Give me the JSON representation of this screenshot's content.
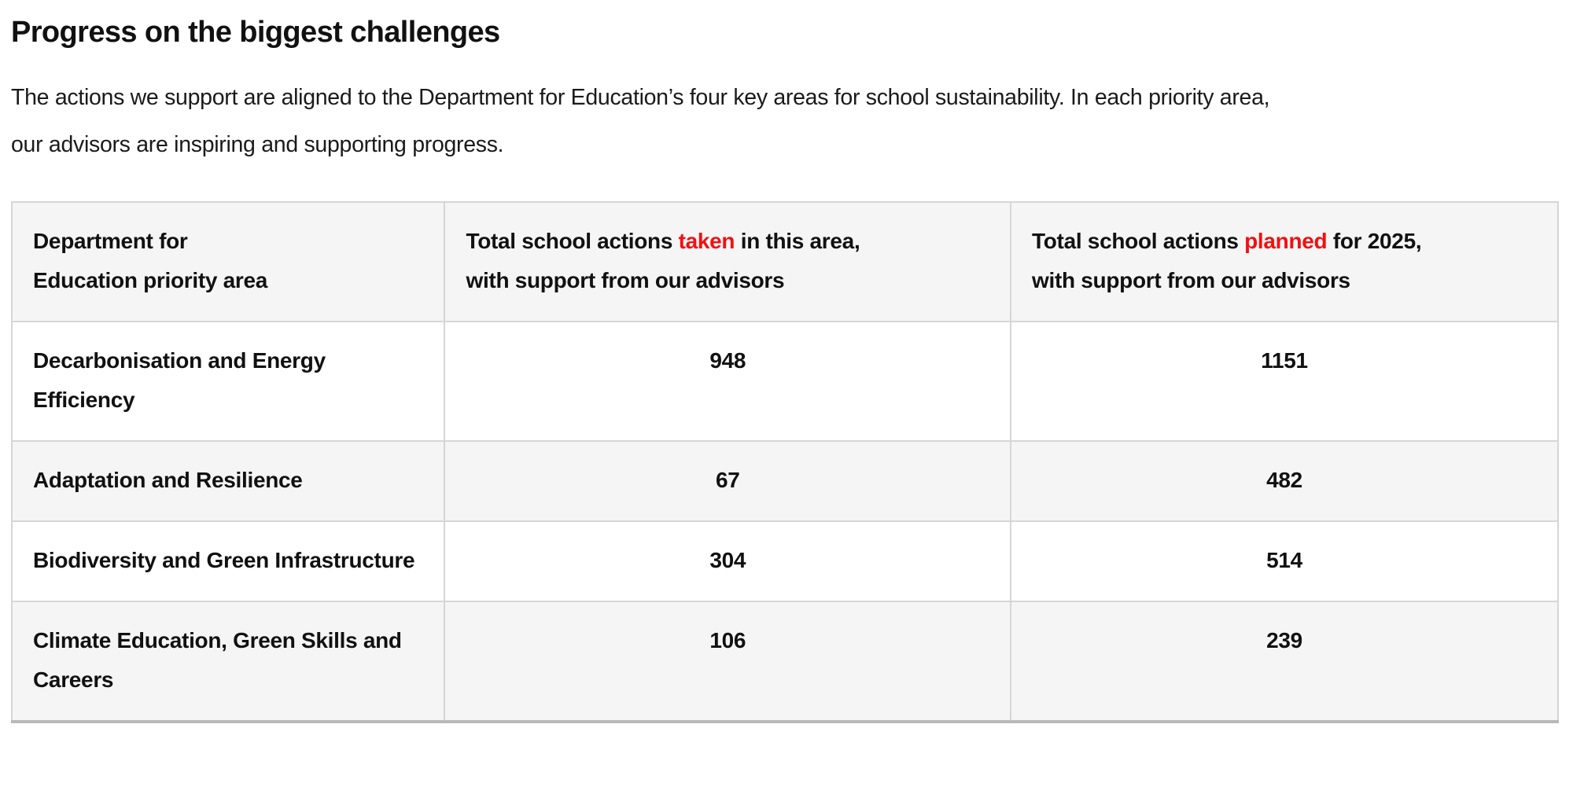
{
  "heading": "Progress on the biggest challenges",
  "intro": "The actions we support are aligned to the Department for Education’s four key areas for school sustainability. In each priority area, our advisors are inspiring and supporting progress.",
  "colors": {
    "highlight_red": "#f40f0f",
    "row_alt_bg": "#f5f5f5",
    "table_border": "#d6d6d6",
    "text": "#111111"
  },
  "table": {
    "headers": [
      {
        "name": "priority-area",
        "segments": [
          {
            "text": "Department for",
            "br": true
          },
          {
            "text": "Education priority area"
          }
        ]
      },
      {
        "name": "actions-taken",
        "segments": [
          {
            "text": "Total school actions "
          },
          {
            "text": "taken",
            "red": true
          },
          {
            "text": " in this area,",
            "br": true
          },
          {
            "text": "with support from our advisors"
          }
        ]
      },
      {
        "name": "actions-planned",
        "segments": [
          {
            "text": "Total school actions "
          },
          {
            "text": "planned",
            "red": true
          },
          {
            "text": " for 2025,",
            "br": true
          },
          {
            "text": "with support from our advisors"
          }
        ]
      }
    ],
    "rows": [
      {
        "area": "Decarbonisation and Energy Efficiency",
        "taken": "948",
        "planned": "1151"
      },
      {
        "area": "Adaptation and Resilience",
        "taken": "67",
        "planned": "482"
      },
      {
        "area": "Biodiversity and Green Infrastructure",
        "taken": "304",
        "planned": "514"
      },
      {
        "area": "Climate Education, Green Skills and Careers",
        "taken": "106",
        "planned": "239"
      }
    ]
  }
}
